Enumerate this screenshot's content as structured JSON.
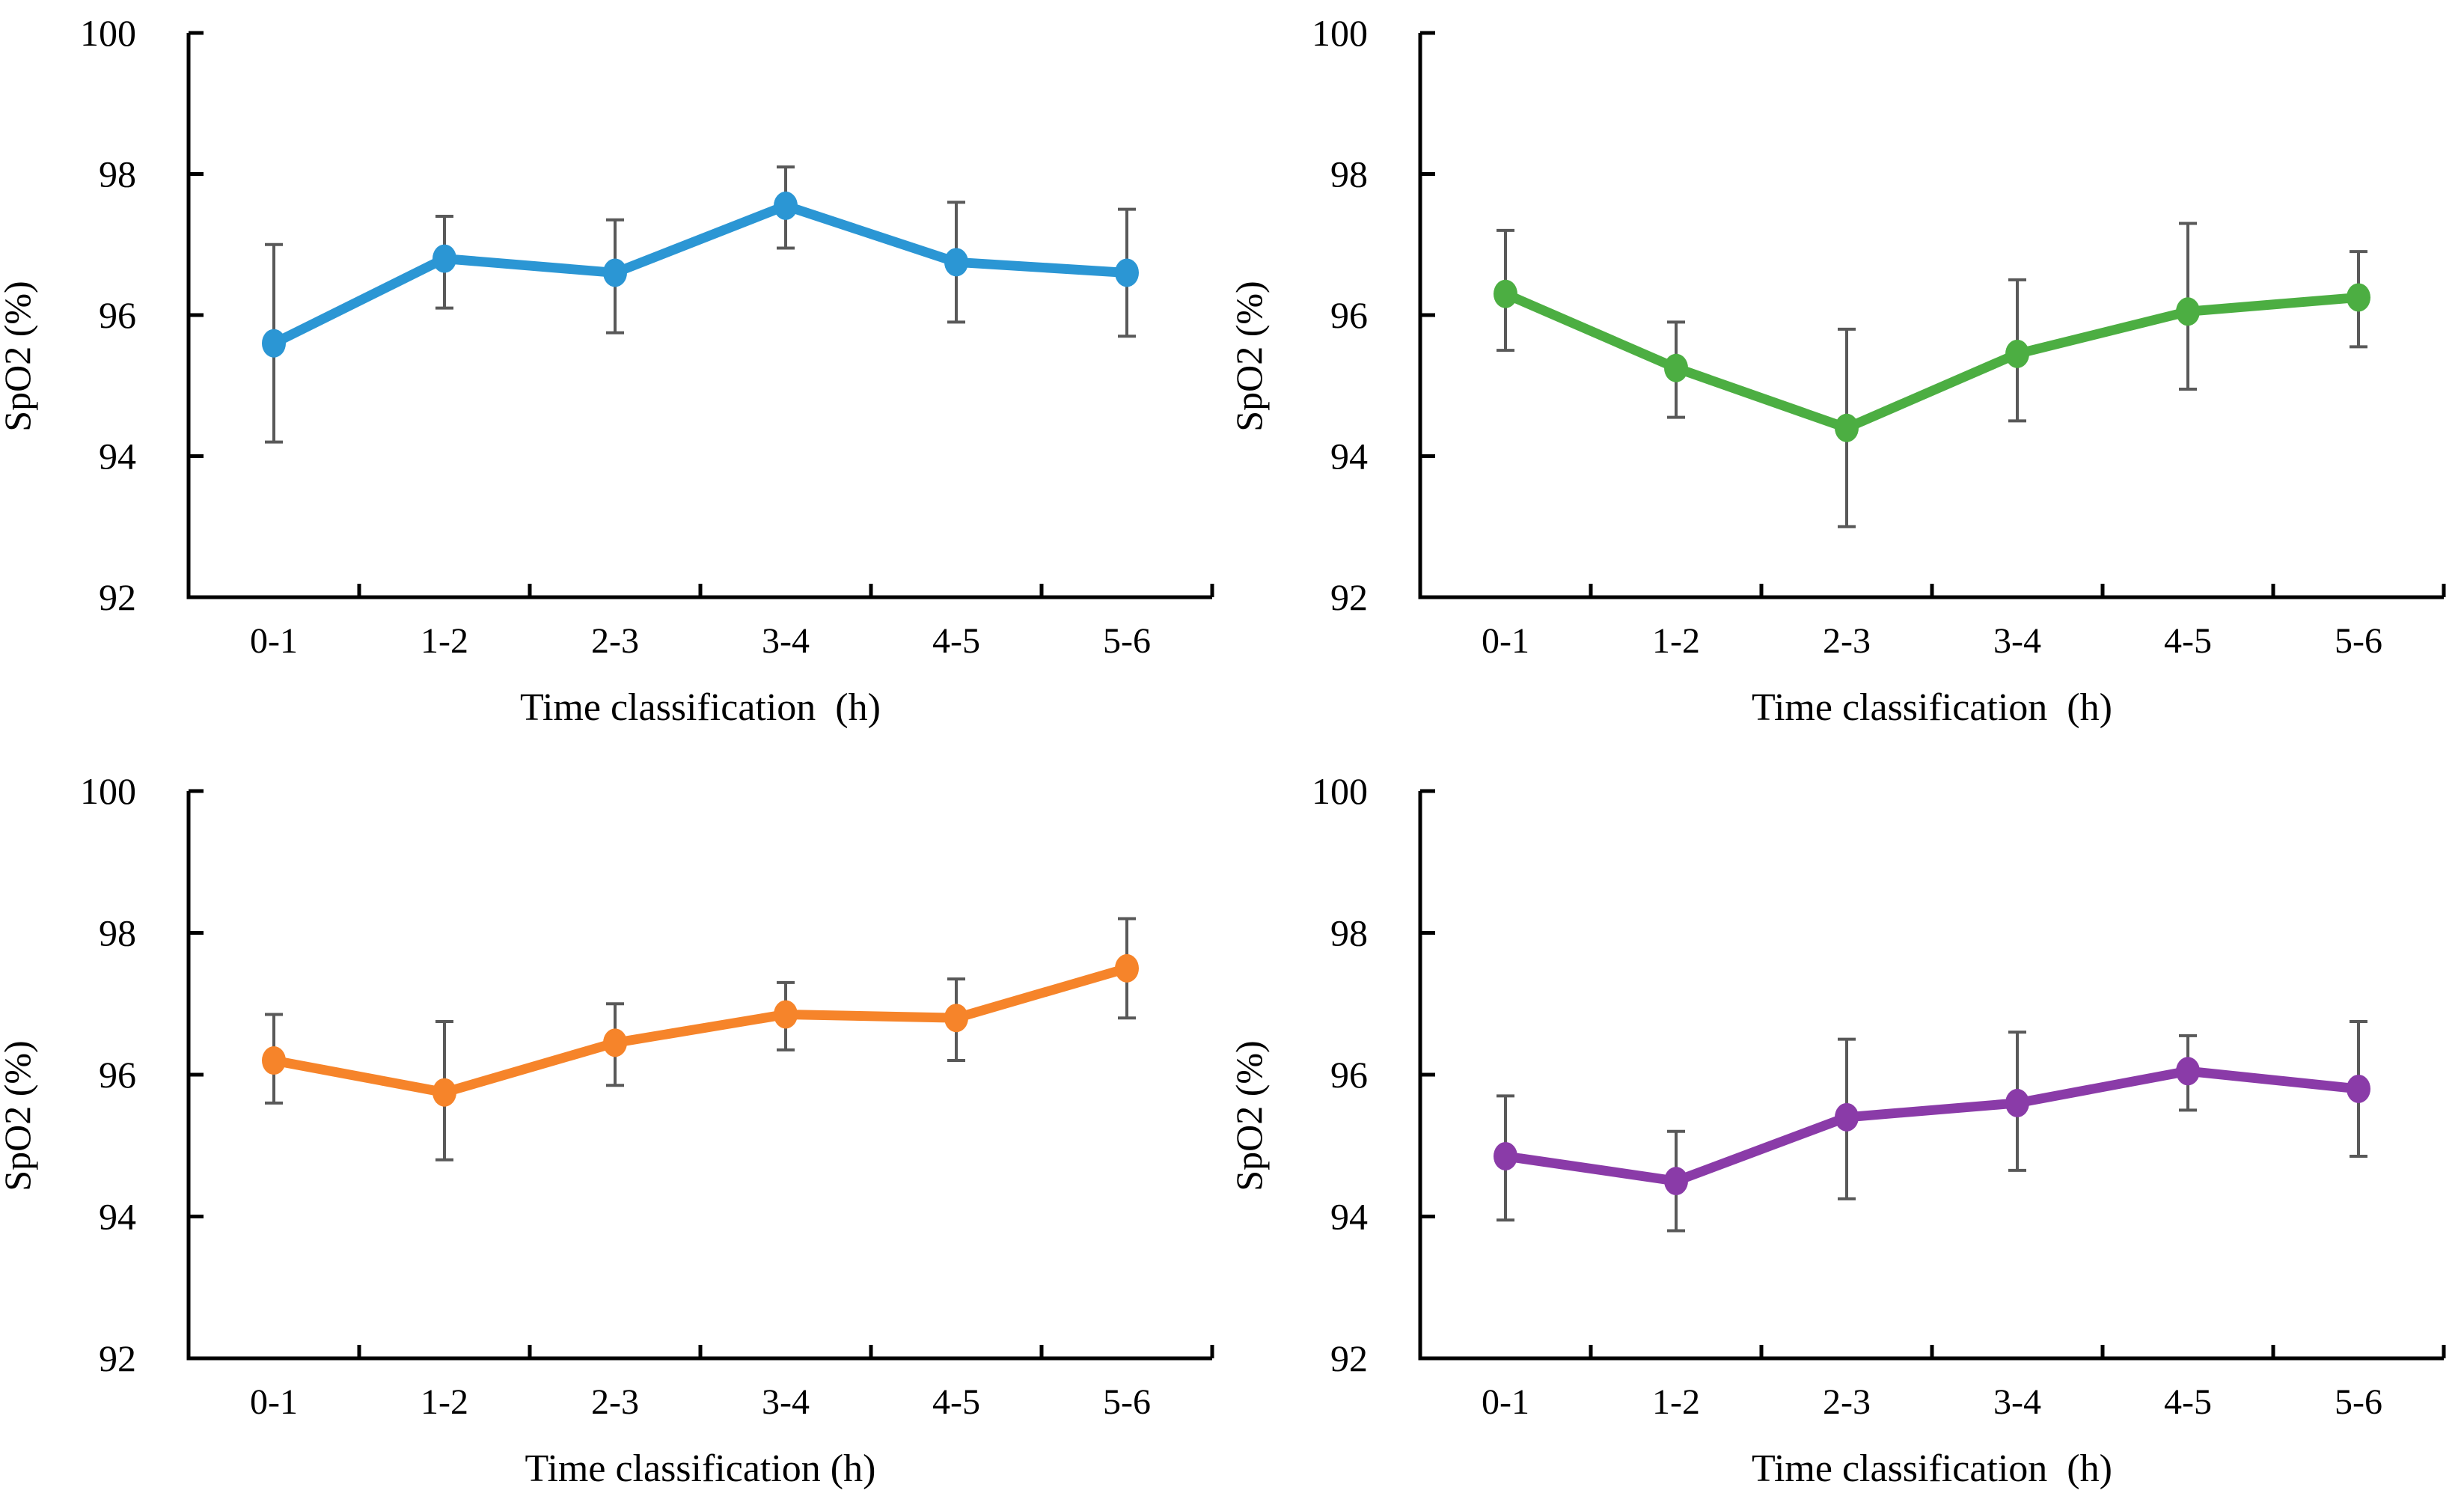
{
  "figure": {
    "background": "#ffffff",
    "axis_color": "#000000",
    "error_bar_color": "#595959",
    "text_color": "#000000"
  },
  "chart_data": [
    {
      "type": "line",
      "position": "top-left",
      "series_color": "#2B96D4",
      "title": "",
      "ylabel": "SpO2 (%)",
      "xlabel": "Time classification  (h)",
      "categories": [
        "0-1",
        "1-2",
        "2-3",
        "3-4",
        "4-5",
        "5-6"
      ],
      "values": [
        95.6,
        96.8,
        96.6,
        97.55,
        96.75,
        96.6
      ],
      "err_high": [
        97.0,
        97.4,
        97.35,
        98.1,
        97.6,
        97.5
      ],
      "err_low": [
        94.2,
        96.1,
        95.75,
        96.95,
        95.9,
        95.7
      ],
      "y_ticks": [
        92,
        94,
        96,
        98,
        100
      ],
      "ylim": [
        92,
        100
      ],
      "grid": "off",
      "legend": "none"
    },
    {
      "type": "line",
      "position": "top-right",
      "series_color": "#4CAE42",
      "title": "",
      "ylabel": "SpO2 (%)",
      "xlabel": "Time classification  (h)",
      "categories": [
        "0-1",
        "1-2",
        "2-3",
        "3-4",
        "4-5",
        "5-6"
      ],
      "values": [
        96.3,
        95.25,
        94.4,
        95.45,
        96.05,
        96.25
      ],
      "err_high": [
        97.2,
        95.9,
        95.8,
        96.5,
        97.3,
        96.9
      ],
      "err_low": [
        95.5,
        94.55,
        93.0,
        94.5,
        94.95,
        95.55
      ],
      "y_ticks": [
        92,
        94,
        96,
        98,
        100
      ],
      "ylim": [
        92,
        100
      ],
      "grid": "off",
      "legend": "none"
    },
    {
      "type": "line",
      "position": "bottom-left",
      "series_color": "#F6842A",
      "title": "",
      "ylabel": "SpO2 (%)",
      "xlabel": "Time classification (h)",
      "categories": [
        "0-1",
        "1-2",
        "2-3",
        "3-4",
        "4-5",
        "5-6"
      ],
      "values": [
        96.2,
        95.75,
        96.45,
        96.85,
        96.8,
        97.5
      ],
      "err_high": [
        96.85,
        96.75,
        97.0,
        97.3,
        97.35,
        98.2
      ],
      "err_low": [
        95.6,
        94.8,
        95.85,
        96.35,
        96.2,
        96.8
      ],
      "y_ticks": [
        92,
        94,
        96,
        98,
        100
      ],
      "ylim": [
        92,
        100
      ],
      "grid": "off",
      "legend": "none"
    },
    {
      "type": "line",
      "position": "bottom-right",
      "series_color": "#8A3BA8",
      "title": "",
      "ylabel": "SpO2 (%)",
      "xlabel": "Time classification  (h)",
      "categories": [
        "0-1",
        "1-2",
        "2-3",
        "3-4",
        "4-5",
        "5-6"
      ],
      "values": [
        94.85,
        94.5,
        95.4,
        95.6,
        96.05,
        95.8
      ],
      "err_high": [
        95.7,
        95.2,
        96.5,
        96.6,
        96.55,
        96.75
      ],
      "err_low": [
        93.95,
        93.8,
        94.25,
        94.65,
        95.5,
        94.85
      ],
      "y_ticks": [
        92,
        94,
        96,
        98,
        100
      ],
      "ylim": [
        92,
        100
      ],
      "grid": "off",
      "legend": "none"
    }
  ]
}
